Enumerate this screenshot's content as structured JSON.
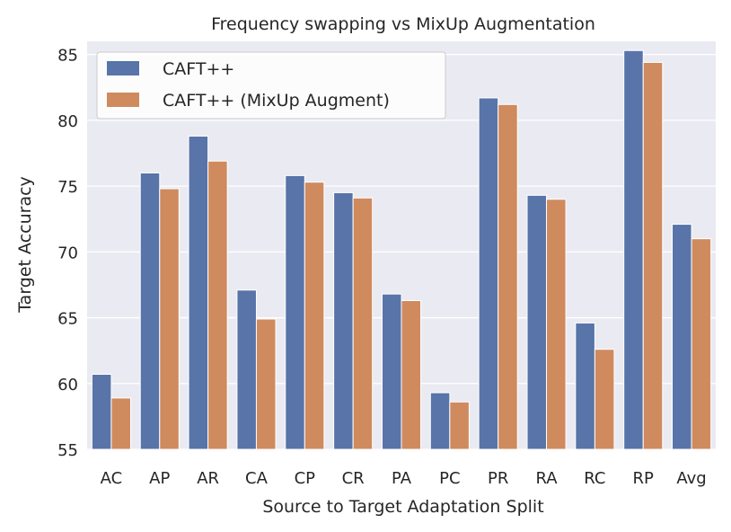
{
  "chart_data": {
    "type": "bar",
    "title": "Frequency swapping vs MixUp Augmentation",
    "xlabel": "Source to Target Adaptation Split",
    "ylabel": "Target Accuracy",
    "ylim": [
      55,
      86
    ],
    "yticks": [
      55,
      60,
      65,
      70,
      75,
      80,
      85
    ],
    "grid": true,
    "legend_position": "top-left",
    "categories": [
      "AC",
      "AP",
      "AR",
      "CA",
      "CP",
      "CR",
      "PA",
      "PC",
      "PR",
      "RA",
      "RC",
      "RP",
      "Avg"
    ],
    "series": [
      {
        "name": "CAFT++",
        "color": "#5874a8",
        "values": [
          60.7,
          76.0,
          78.8,
          67.1,
          75.8,
          74.5,
          66.8,
          59.3,
          81.7,
          74.3,
          64.6,
          85.3,
          72.1
        ]
      },
      {
        "name": "CAFT++ (MixUp Augment)",
        "color": "#cf8a5e",
        "values": [
          58.9,
          74.8,
          76.9,
          64.9,
          75.3,
          74.1,
          66.3,
          58.6,
          81.2,
          74.0,
          62.6,
          84.4,
          71.0
        ]
      }
    ],
    "background": "#eaeaf2",
    "grid_color": "#ffffff"
  }
}
